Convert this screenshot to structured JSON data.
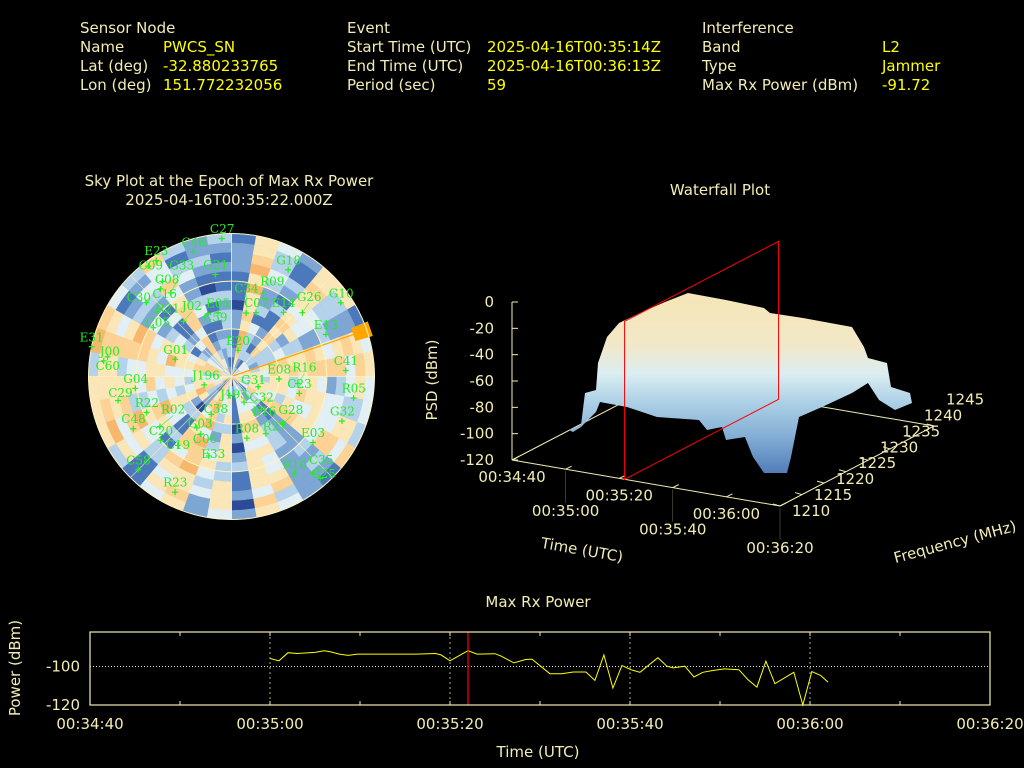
{
  "colors": {
    "label": "#f3ecb4",
    "value": "#ffff00",
    "marker": "#22ee22",
    "cursor": "#ff0000",
    "jammer": "#ffa500",
    "trace": "#ffff00"
  },
  "header": {
    "sensor": {
      "title": "Sensor Node",
      "name_label": "Name",
      "name": "PWCS_SN",
      "lat_label": "Lat (deg)",
      "lat": "-32.880233765",
      "lon_label": "Lon (deg)",
      "lon": "151.772232056"
    },
    "event": {
      "title": "Event",
      "start_label": "Start Time (UTC)",
      "start": "2025-04-16T00:35:14Z",
      "end_label": "End Time (UTC)",
      "end": "2025-04-16T00:36:13Z",
      "period_label": "Period (sec)",
      "period": "59"
    },
    "interference": {
      "title": "Interference",
      "band_label": "Band",
      "band": "L2",
      "type_label": "Type",
      "type": "Jammer",
      "power_label": "Max Rx Power (dBm)",
      "power": "-91.72"
    }
  },
  "chart_data": [
    {
      "type": "scatter",
      "subtype": "polar-sky-plot",
      "title": "Sky Plot at the Epoch of Max Rx Power",
      "subtitle": "2025-04-16T00:35:22.000Z",
      "jammer_azimuth_deg": 71,
      "palette": [
        "#2c4a96",
        "#4c79bb",
        "#7ea6d4",
        "#b4d2ea",
        "#e2eff4",
        "#fbe6b8",
        "#fcd394",
        "#f7b86e"
      ],
      "satellites": [
        {
          "id": "C27",
          "az": 356,
          "el": 3
        },
        {
          "id": "C46",
          "az": 343,
          "el": 8
        },
        {
          "id": "E23",
          "az": 327,
          "el": 3
        },
        {
          "id": "C09",
          "az": 323,
          "el": 3
        },
        {
          "id": "G21",
          "az": 351,
          "el": 25
        },
        {
          "id": "G18",
          "az": 28,
          "el": 14
        },
        {
          "id": "C08",
          "az": 324,
          "el": 16
        },
        {
          "id": "C16",
          "az": 321,
          "el": 19
        },
        {
          "id": "C30",
          "az": 311,
          "el": 19
        },
        {
          "id": "R21",
          "az": 311,
          "el": 28
        },
        {
          "id": "G33",
          "az": 324,
          "el": 25
        },
        {
          "id": "J02",
          "az": 319,
          "el": 44
        },
        {
          "id": "E05",
          "az": 348,
          "el": 49
        },
        {
          "id": "C59",
          "az": 339,
          "el": 48
        },
        {
          "id": "C07",
          "az": 21,
          "el": 47
        },
        {
          "id": "C34",
          "az": 13,
          "el": 49
        },
        {
          "id": "R09",
          "az": 21,
          "el": 34
        },
        {
          "id": "E14",
          "az": 39,
          "el": 38
        },
        {
          "id": "G26",
          "az": 48,
          "el": 30
        },
        {
          "id": "G10",
          "az": 56,
          "el": 7
        },
        {
          "id": "C05",
          "az": 302,
          "el": 32
        },
        {
          "id": "E13",
          "az": 66,
          "el": 25
        },
        {
          "id": "E31",
          "az": 282,
          "el": 0
        },
        {
          "id": "J00",
          "az": 279,
          "el": 11
        },
        {
          "id": "C60",
          "az": 277,
          "el": 9
        },
        {
          "id": "G01",
          "az": 287,
          "el": 53
        },
        {
          "id": "E20",
          "az": 14,
          "el": 73
        },
        {
          "id": "C41",
          "az": 87,
          "el": 18
        },
        {
          "id": "E08",
          "az": 93,
          "el": 60
        },
        {
          "id": "R16",
          "az": 96,
          "el": 48
        },
        {
          "id": "C23",
          "az": 104,
          "el": 46
        },
        {
          "id": "J196",
          "az": 253,
          "el": 72
        },
        {
          "id": "G04",
          "az": 263,
          "el": 29
        },
        {
          "id": "G31",
          "az": 111,
          "el": 72
        },
        {
          "id": "C29",
          "az": 258,
          "el": 17
        },
        {
          "id": "J193",
          "az": 185,
          "el": 78
        },
        {
          "id": "C32",
          "az": 154,
          "el": 72
        },
        {
          "id": "R05",
          "az": 100,
          "el": 12
        },
        {
          "id": "G32",
          "az": 112,
          "el": 15
        },
        {
          "id": "R22",
          "az": 247,
          "el": 32
        },
        {
          "id": "C38",
          "az": 208,
          "el": 63
        },
        {
          "id": "E16",
          "az": 138,
          "el": 62
        },
        {
          "id": "G28",
          "az": 133,
          "el": 46
        },
        {
          "id": "C48",
          "az": 242,
          "el": 20
        },
        {
          "id": "C20",
          "az": 228,
          "el": 30
        },
        {
          "id": "G03",
          "az": 214,
          "el": 51
        },
        {
          "id": "C06",
          "az": 208,
          "el": 49
        },
        {
          "id": "C19",
          "az": 218,
          "el": 35
        },
        {
          "id": "R08",
          "az": 166,
          "el": 50
        },
        {
          "id": "R27",
          "az": 149,
          "el": 48
        },
        {
          "id": "E03",
          "az": 129,
          "el": 24
        },
        {
          "id": "E33",
          "az": 196,
          "el": 38
        },
        {
          "id": "C58",
          "az": 225,
          "el": 7
        },
        {
          "id": "R10",
          "az": 147,
          "el": 17
        },
        {
          "id": "C35",
          "az": 140,
          "el": 10
        },
        {
          "id": "G25",
          "az": 139,
          "el": 5
        },
        {
          "id": "R23",
          "az": 206,
          "el": 9
        },
        {
          "id": "R02",
          "az": 235,
          "el": 35
        }
      ]
    },
    {
      "type": "area",
      "subtype": "3d-waterfall",
      "title": "Waterfall Plot",
      "xlabel": "Time (UTC)",
      "ylabel": "Frequency (MHz)",
      "zlabel": "PSD (dBm)",
      "x_ticks": [
        "00:34:40",
        "00:35:00",
        "00:35:20",
        "00:35:40",
        "00:36:00",
        "00:36:20"
      ],
      "y_ticks": [
        "1210",
        "1215",
        "1220",
        "1225",
        "1230",
        "1235",
        "1240",
        "1245"
      ],
      "z_ticks": [
        "0",
        "-20",
        "-40",
        "-60",
        "-80",
        "-100",
        "-120"
      ],
      "zlim": [
        -120,
        0
      ],
      "cursor_time_s": 42
    },
    {
      "type": "line",
      "title": "Max Rx Power",
      "xlabel": "Time (UTC)",
      "ylabel": "Power (dBm)",
      "xlim": [
        0,
        100
      ],
      "ylim": [
        -120,
        -82
      ],
      "x_ticks": [
        "00:34:40",
        "00:35:00",
        "00:35:20",
        "00:35:40",
        "00:36:00",
        "00:36:20"
      ],
      "y_ticks": [
        {
          "v": -100,
          "label": "-100"
        },
        {
          "v": -120,
          "label": "-120"
        }
      ],
      "x_unit": "seconds since 00:34:40",
      "cursor_time_s": 42,
      "x": [
        20,
        21,
        22,
        23,
        25,
        26,
        26.7,
        27.7,
        28.7,
        29.7,
        36.3,
        38.4,
        39,
        40,
        42,
        43,
        45,
        45.7,
        47.1,
        48.4,
        49.1,
        51.1,
        52.4,
        53.7,
        55.1,
        56.1,
        57.1,
        58.1,
        59.1,
        60.1,
        61.1,
        63.1,
        64.1,
        64.8,
        66.1,
        67.1,
        68.1,
        69.1,
        70.5,
        72.1,
        73.1,
        74.1,
        75.1,
        76.1,
        78.2,
        79.2,
        80.2,
        81.2,
        82
      ],
      "values": [
        -95.8,
        -97,
        -92.8,
        -93.2,
        -92.6,
        -91.8,
        -92.3,
        -93.5,
        -94.2,
        -93.5,
        -93.5,
        -93.2,
        -93.9,
        -97,
        -91.72,
        -93.5,
        -93.3,
        -94.6,
        -98.1,
        -96.3,
        -96.1,
        -103.7,
        -103.7,
        -102.8,
        -102.8,
        -107.2,
        -93.9,
        -111.2,
        -99.5,
        -101.6,
        -103,
        -95.4,
        -99.8,
        -100.7,
        -99.8,
        -105.4,
        -103,
        -102.1,
        -101.2,
        -101.6,
        -106.8,
        -110.7,
        -97.2,
        -108.9,
        -103,
        -120,
        -102.6,
        -104.7,
        -108.1
      ]
    }
  ]
}
